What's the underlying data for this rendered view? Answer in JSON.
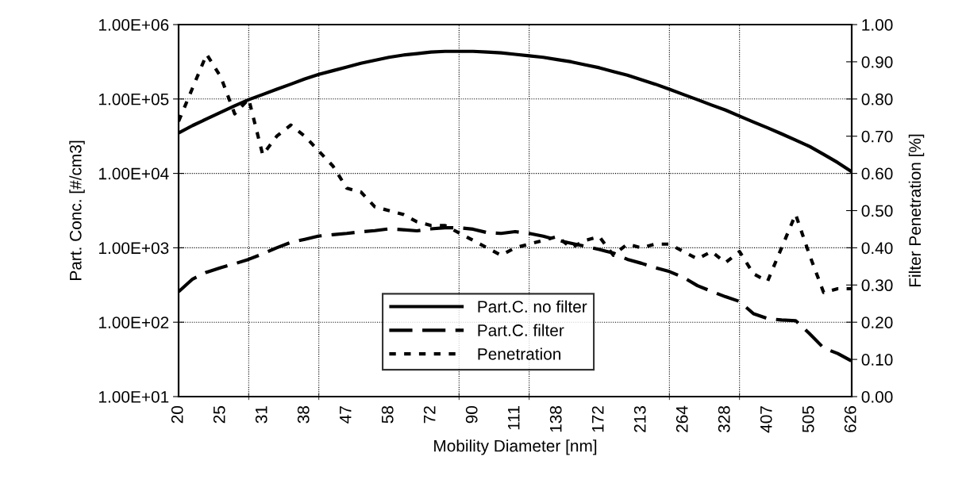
{
  "chart_data": {
    "type": "line",
    "xlabel": "Mobility Diameter [nm]",
    "ylabel": "Part. Conc. [#/cm3]",
    "y2label": "Filter Penetration [%]",
    "categories": [
      "20",
      null,
      null,
      "25",
      null,
      null,
      "31",
      null,
      null,
      "38",
      null,
      null,
      "47",
      null,
      null,
      "58",
      null,
      null,
      "72",
      null,
      null,
      "90",
      null,
      null,
      "111",
      null,
      null,
      "138",
      null,
      null,
      "172",
      null,
      null,
      "213",
      null,
      null,
      "264",
      null,
      null,
      "328",
      null,
      null,
      "407",
      null,
      null,
      "505",
      null,
      null,
      "626"
    ],
    "log": "y",
    "ylim": [
      10,
      1000000
    ],
    "yticks": [
      {
        "value": 10,
        "label": "1.00E+01"
      },
      {
        "value": 100,
        "label": "1.00E+02"
      },
      {
        "value": 1000,
        "label": "1.00E+03"
      },
      {
        "value": 10000,
        "label": "1.00E+04"
      },
      {
        "value": 100000,
        "label": "1.00E+05"
      },
      {
        "value": 1000000,
        "label": "1.00E+06"
      }
    ],
    "y2lim": [
      0,
      1
    ],
    "y2ticks": [
      {
        "value": 0,
        "label": "0.00"
      },
      {
        "value": 0.1,
        "label": "0.10"
      },
      {
        "value": 0.2,
        "label": "0.20"
      },
      {
        "value": 0.3,
        "label": "0.30"
      },
      {
        "value": 0.4,
        "label": "0.40"
      },
      {
        "value": 0.5,
        "label": "0.50"
      },
      {
        "value": 0.6,
        "label": "0.60"
      },
      {
        "value": 0.7,
        "label": "0.70"
      },
      {
        "value": 0.8,
        "label": "0.80"
      },
      {
        "value": 0.9,
        "label": "0.90"
      },
      {
        "value": 1,
        "label": "1.00"
      }
    ],
    "grid": true,
    "legend": "bottom",
    "marker": "none",
    "series": [
      {
        "name": "Part.C. no filter",
        "color": "#000000",
        "line_style": "solid",
        "values": [
          35000,
          44000,
          54000,
          66000,
          81000,
          98000,
          115000,
          135000,
          158000,
          186000,
          214000,
          240000,
          269000,
          302000,
          331000,
          363000,
          389000,
          407000,
          427000,
          437000,
          437000,
          437000,
          427000,
          417000,
          398000,
          380000,
          363000,
          339000,
          316000,
          288000,
          263000,
          234000,
          209000,
          182000,
          158000,
          135000,
          115000,
          98000,
          83000,
          71000,
          59000,
          49000,
          41000,
          34000,
          28000,
          23000,
          18000,
          14000,
          10500
        ]
      },
      {
        "name": "Part.C. filter",
        "color": "#000000",
        "line_style": "dashed",
        "values": [
          257,
          380,
          470,
          540,
          610,
          700,
          830,
          1000,
          1180,
          1300,
          1440,
          1500,
          1560,
          1640,
          1700,
          1800,
          1750,
          1690,
          1800,
          1860,
          1860,
          1780,
          1600,
          1560,
          1650,
          1560,
          1430,
          1270,
          1150,
          1050,
          950,
          850,
          700,
          620,
          540,
          480,
          400,
          310,
          260,
          220,
          190,
          130,
          112,
          107,
          105,
          70,
          45,
          38,
          30
        ]
      },
      {
        "name": "Penetration",
        "color": "#000000",
        "line_style": "dotted",
        "axis": "y2",
        "values": [
          0.74,
          0.83,
          0.92,
          0.86,
          0.76,
          0.8,
          0.65,
          0.7,
          0.73,
          0.7,
          0.66,
          0.62,
          0.56,
          0.55,
          0.51,
          0.5,
          0.49,
          0.47,
          0.46,
          0.46,
          0.44,
          0.42,
          0.4,
          0.38,
          0.4,
          0.41,
          0.42,
          0.43,
          0.4,
          0.42,
          0.43,
          0.38,
          0.41,
          0.4,
          0.41,
          0.41,
          0.39,
          0.37,
          0.39,
          0.36,
          0.39,
          0.33,
          0.31,
          0.4,
          0.49,
          0.38,
          0.28,
          0.29,
          0.29
        ]
      }
    ]
  }
}
